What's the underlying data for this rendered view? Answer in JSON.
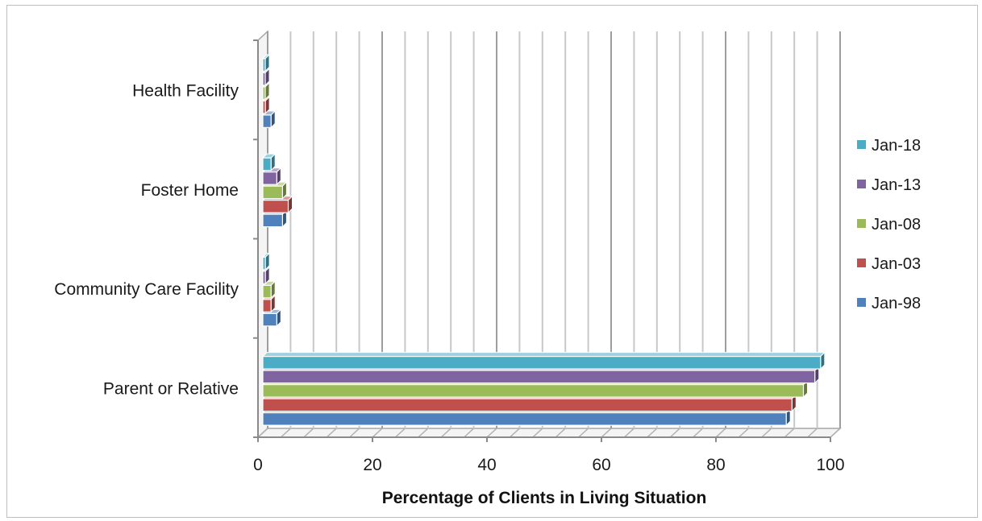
{
  "chart_data": {
    "type": "bar",
    "orientation": "horizontal",
    "style": "3d",
    "categories": [
      "Parent or Relative",
      "Community Care Facility",
      "Foster Home",
      "Health Facility"
    ],
    "series": [
      {
        "name": "Jan-98",
        "color": "#4F81BD",
        "values": [
          92,
          3,
          4,
          2
        ]
      },
      {
        "name": "Jan-03",
        "color": "#C0504D",
        "values": [
          93,
          2,
          5,
          1
        ]
      },
      {
        "name": "Jan-08",
        "color": "#9BBB59",
        "values": [
          95,
          2,
          4,
          0.5
        ]
      },
      {
        "name": "Jan-13",
        "color": "#8064A2",
        "values": [
          97,
          1,
          3,
          0.5
        ]
      },
      {
        "name": "Jan-18",
        "color": "#4BACC6",
        "values": [
          98,
          1,
          2,
          0.5
        ]
      }
    ],
    "x_ticks": [
      "0",
      "20",
      "40",
      "60",
      "80",
      "100"
    ],
    "xlim": [
      0,
      100
    ],
    "xlabel": "Percentage of Clients in Living Situation",
    "ylabel": "",
    "title": "",
    "grid": true,
    "legend_position": "right"
  }
}
